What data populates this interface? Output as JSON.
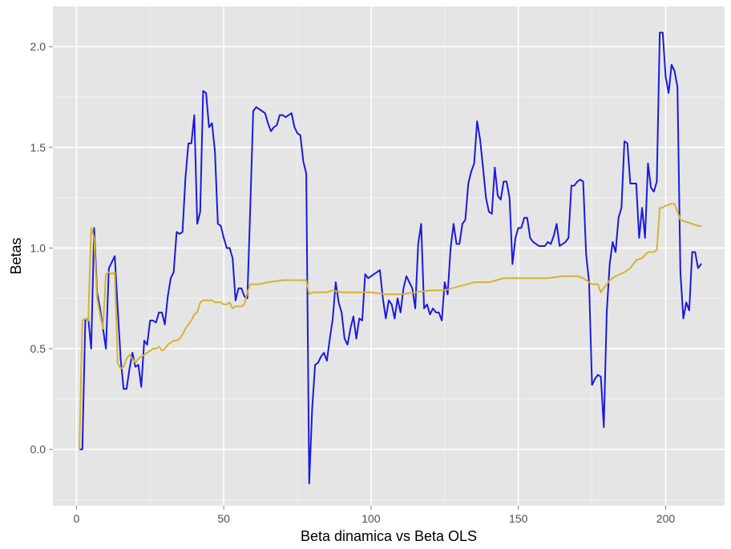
{
  "chart_data": {
    "type": "line",
    "title": "",
    "xlabel": "Beta dinamica vs Beta OLS",
    "ylabel": "Betas",
    "xlim": [
      -8,
      220
    ],
    "ylim": [
      -0.28,
      2.2
    ],
    "x_ticks": [
      0,
      50,
      100,
      150,
      200
    ],
    "y_ticks": [
      0.0,
      0.5,
      1.0,
      1.5,
      2.0
    ],
    "x_tick_labels": [
      "0",
      "50",
      "100",
      "150",
      "200"
    ],
    "y_tick_labels": [
      "0.0",
      "0.5",
      "1.0",
      "1.5",
      "2.0"
    ],
    "grid": true,
    "panel_background": "#e5e5e5",
    "grid_color": "#ffffff",
    "series": [
      {
        "color": "#1a1adf",
        "points": [
          [
            1,
            0.0
          ],
          [
            2,
            0.0
          ],
          [
            3,
            0.64
          ],
          [
            4,
            0.65
          ],
          [
            5,
            0.5
          ],
          [
            6,
            1.1
          ],
          [
            7,
            0.78
          ],
          [
            8,
            0.7
          ],
          [
            9,
            0.6
          ],
          [
            10,
            0.5
          ],
          [
            11,
            0.9
          ],
          [
            12,
            0.93
          ],
          [
            13,
            0.96
          ],
          [
            14,
            0.7
          ],
          [
            15,
            0.45
          ],
          [
            16,
            0.3
          ],
          [
            17,
            0.3
          ],
          [
            18,
            0.4
          ],
          [
            19,
            0.48
          ],
          [
            20,
            0.41
          ],
          [
            21,
            0.42
          ],
          [
            22,
            0.31
          ],
          [
            23,
            0.54
          ],
          [
            24,
            0.52
          ],
          [
            25,
            0.64
          ],
          [
            26,
            0.64
          ],
          [
            27,
            0.63
          ],
          [
            28,
            0.68
          ],
          [
            29,
            0.68
          ],
          [
            30,
            0.62
          ],
          [
            31,
            0.76
          ],
          [
            32,
            0.85
          ],
          [
            33,
            0.88
          ],
          [
            34,
            1.08
          ],
          [
            35,
            1.07
          ],
          [
            36,
            1.08
          ],
          [
            37,
            1.35
          ],
          [
            38,
            1.52
          ],
          [
            39,
            1.52
          ],
          [
            40,
            1.66
          ],
          [
            41,
            1.12
          ],
          [
            42,
            1.18
          ],
          [
            43,
            1.78
          ],
          [
            44,
            1.77
          ],
          [
            45,
            1.6
          ],
          [
            46,
            1.62
          ],
          [
            47,
            1.48
          ],
          [
            48,
            1.12
          ],
          [
            49,
            1.11
          ],
          [
            50,
            1.05
          ],
          [
            51,
            1.0
          ],
          [
            52,
            1.0
          ],
          [
            53,
            0.95
          ],
          [
            54,
            0.74
          ],
          [
            55,
            0.8
          ],
          [
            56,
            0.8
          ],
          [
            57,
            0.76
          ],
          [
            58,
            0.75
          ],
          [
            59,
            1.2
          ],
          [
            60,
            1.68
          ],
          [
            61,
            1.7
          ],
          [
            62,
            1.69
          ],
          [
            63,
            1.68
          ],
          [
            64,
            1.67
          ],
          [
            65,
            1.62
          ],
          [
            66,
            1.58
          ],
          [
            67,
            1.6
          ],
          [
            68,
            1.61
          ],
          [
            69,
            1.66
          ],
          [
            70,
            1.66
          ],
          [
            71,
            1.65
          ],
          [
            72,
            1.66
          ],
          [
            73,
            1.67
          ],
          [
            74,
            1.6
          ],
          [
            75,
            1.57
          ],
          [
            76,
            1.56
          ],
          [
            77,
            1.43
          ],
          [
            78,
            1.37
          ],
          [
            79,
            -0.17
          ],
          [
            80,
            0.2
          ],
          [
            81,
            0.42
          ],
          [
            82,
            0.43
          ],
          [
            83,
            0.46
          ],
          [
            84,
            0.48
          ],
          [
            85,
            0.44
          ],
          [
            86,
            0.55
          ],
          [
            87,
            0.65
          ],
          [
            88,
            0.83
          ],
          [
            89,
            0.73
          ],
          [
            90,
            0.68
          ],
          [
            91,
            0.55
          ],
          [
            92,
            0.52
          ],
          [
            93,
            0.6
          ],
          [
            94,
            0.66
          ],
          [
            95,
            0.55
          ],
          [
            96,
            0.65
          ],
          [
            97,
            0.64
          ],
          [
            98,
            0.87
          ],
          [
            99,
            0.85
          ],
          [
            100,
            0.86
          ],
          [
            101,
            0.87
          ],
          [
            102,
            0.88
          ],
          [
            103,
            0.89
          ],
          [
            104,
            0.75
          ],
          [
            105,
            0.65
          ],
          [
            106,
            0.74
          ],
          [
            107,
            0.72
          ],
          [
            108,
            0.65
          ],
          [
            109,
            0.75
          ],
          [
            110,
            0.68
          ],
          [
            111,
            0.8
          ],
          [
            112,
            0.86
          ],
          [
            113,
            0.83
          ],
          [
            114,
            0.8
          ],
          [
            115,
            0.7
          ],
          [
            116,
            1.02
          ],
          [
            117,
            1.12
          ],
          [
            118,
            0.7
          ],
          [
            119,
            0.72
          ],
          [
            120,
            0.67
          ],
          [
            121,
            0.7
          ],
          [
            122,
            0.68
          ],
          [
            123,
            0.68
          ],
          [
            124,
            0.64
          ],
          [
            125,
            0.83
          ],
          [
            126,
            0.77
          ],
          [
            127,
            1.0
          ],
          [
            128,
            1.12
          ],
          [
            129,
            1.02
          ],
          [
            130,
            1.02
          ],
          [
            131,
            1.12
          ],
          [
            132,
            1.14
          ],
          [
            133,
            1.32
          ],
          [
            134,
            1.38
          ],
          [
            135,
            1.42
          ],
          [
            136,
            1.63
          ],
          [
            137,
            1.54
          ],
          [
            138,
            1.4
          ],
          [
            139,
            1.25
          ],
          [
            140,
            1.18
          ],
          [
            141,
            1.17
          ],
          [
            142,
            1.4
          ],
          [
            143,
            1.26
          ],
          [
            144,
            1.24
          ],
          [
            145,
            1.33
          ],
          [
            146,
            1.33
          ],
          [
            147,
            1.25
          ],
          [
            148,
            0.92
          ],
          [
            149,
            1.05
          ],
          [
            150,
            1.1
          ],
          [
            151,
            1.1
          ],
          [
            152,
            1.15
          ],
          [
            153,
            1.15
          ],
          [
            154,
            1.05
          ],
          [
            155,
            1.03
          ],
          [
            156,
            1.02
          ],
          [
            157,
            1.01
          ],
          [
            158,
            1.01
          ],
          [
            159,
            1.01
          ],
          [
            160,
            1.03
          ],
          [
            161,
            1.02
          ],
          [
            162,
            1.06
          ],
          [
            163,
            1.12
          ],
          [
            164,
            1.01
          ],
          [
            165,
            1.02
          ],
          [
            166,
            1.03
          ],
          [
            167,
            1.05
          ],
          [
            168,
            1.31
          ],
          [
            169,
            1.31
          ],
          [
            170,
            1.33
          ],
          [
            171,
            1.34
          ],
          [
            172,
            1.33
          ],
          [
            173,
            0.97
          ],
          [
            174,
            0.83
          ],
          [
            175,
            0.32
          ],
          [
            176,
            0.35
          ],
          [
            177,
            0.37
          ],
          [
            178,
            0.36
          ],
          [
            179,
            0.11
          ],
          [
            180,
            0.68
          ],
          [
            181,
            0.92
          ],
          [
            182,
            1.03
          ],
          [
            183,
            0.98
          ],
          [
            184,
            1.15
          ],
          [
            185,
            1.2
          ],
          [
            186,
            1.53
          ],
          [
            187,
            1.52
          ],
          [
            188,
            1.32
          ],
          [
            189,
            1.32
          ],
          [
            190,
            1.32
          ],
          [
            191,
            1.05
          ],
          [
            192,
            1.2
          ],
          [
            193,
            1.05
          ],
          [
            194,
            1.42
          ],
          [
            195,
            1.3
          ],
          [
            196,
            1.28
          ],
          [
            197,
            1.33
          ],
          [
            198,
            2.07
          ],
          [
            199,
            2.07
          ],
          [
            200,
            1.85
          ],
          [
            201,
            1.77
          ],
          [
            202,
            1.91
          ],
          [
            203,
            1.88
          ],
          [
            204,
            1.8
          ],
          [
            205,
            0.88
          ],
          [
            206,
            0.65
          ],
          [
            207,
            0.73
          ],
          [
            208,
            0.69
          ],
          [
            209,
            0.98
          ],
          [
            210,
            0.98
          ],
          [
            211,
            0.9
          ],
          [
            212,
            0.92
          ]
        ]
      },
      {
        "color": "#d4b331",
        "points": [
          [
            1,
            0.0
          ],
          [
            2,
            0.64
          ],
          [
            3,
            0.65
          ],
          [
            4,
            0.64
          ],
          [
            5,
            1.1
          ],
          [
            6,
            1.05
          ],
          [
            7,
            0.75
          ],
          [
            8,
            0.67
          ],
          [
            9,
            0.6
          ],
          [
            10,
            0.87
          ],
          [
            11,
            0.88
          ],
          [
            12,
            0.87
          ],
          [
            13,
            0.88
          ],
          [
            14,
            0.43
          ],
          [
            15,
            0.4
          ],
          [
            16,
            0.41
          ],
          [
            17,
            0.45
          ],
          [
            18,
            0.47
          ],
          [
            19,
            0.45
          ],
          [
            20,
            0.43
          ],
          [
            21,
            0.45
          ],
          [
            22,
            0.46
          ],
          [
            23,
            0.47
          ],
          [
            24,
            0.48
          ],
          [
            25,
            0.49
          ],
          [
            26,
            0.5
          ],
          [
            27,
            0.5
          ],
          [
            28,
            0.51
          ],
          [
            29,
            0.49
          ],
          [
            30,
            0.5
          ],
          [
            31,
            0.52
          ],
          [
            32,
            0.53
          ],
          [
            33,
            0.54
          ],
          [
            34,
            0.54
          ],
          [
            35,
            0.55
          ],
          [
            36,
            0.57
          ],
          [
            37,
            0.6
          ],
          [
            38,
            0.62
          ],
          [
            39,
            0.64
          ],
          [
            40,
            0.67
          ],
          [
            41,
            0.68
          ],
          [
            42,
            0.73
          ],
          [
            43,
            0.74
          ],
          [
            44,
            0.74
          ],
          [
            45,
            0.74
          ],
          [
            46,
            0.74
          ],
          [
            47,
            0.73
          ],
          [
            48,
            0.73
          ],
          [
            49,
            0.73
          ],
          [
            50,
            0.72
          ],
          [
            51,
            0.72
          ],
          [
            52,
            0.73
          ],
          [
            53,
            0.7
          ],
          [
            54,
            0.71
          ],
          [
            55,
            0.71
          ],
          [
            56,
            0.71
          ],
          [
            57,
            0.72
          ],
          [
            58,
            0.78
          ],
          [
            59,
            0.82
          ],
          [
            60,
            0.82
          ],
          [
            62,
            0.82
          ],
          [
            65,
            0.83
          ],
          [
            70,
            0.84
          ],
          [
            75,
            0.84
          ],
          [
            78,
            0.84
          ],
          [
            79,
            0.77
          ],
          [
            80,
            0.78
          ],
          [
            85,
            0.78
          ],
          [
            87,
            0.79
          ],
          [
            90,
            0.78
          ],
          [
            95,
            0.78
          ],
          [
            100,
            0.78
          ],
          [
            105,
            0.77
          ],
          [
            110,
            0.77
          ],
          [
            115,
            0.78
          ],
          [
            120,
            0.79
          ],
          [
            125,
            0.79
          ],
          [
            130,
            0.81
          ],
          [
            135,
            0.83
          ],
          [
            140,
            0.83
          ],
          [
            145,
            0.85
          ],
          [
            150,
            0.85
          ],
          [
            155,
            0.85
          ],
          [
            160,
            0.85
          ],
          [
            165,
            0.86
          ],
          [
            170,
            0.86
          ],
          [
            172,
            0.85
          ],
          [
            175,
            0.82
          ],
          [
            177,
            0.82
          ],
          [
            178,
            0.78
          ],
          [
            179,
            0.8
          ],
          [
            181,
            0.84
          ],
          [
            183,
            0.86
          ],
          [
            186,
            0.88
          ],
          [
            188,
            0.9
          ],
          [
            190,
            0.94
          ],
          [
            192,
            0.95
          ],
          [
            194,
            0.98
          ],
          [
            196,
            0.98
          ],
          [
            197,
            0.99
          ],
          [
            198,
            1.2
          ],
          [
            199,
            1.2
          ],
          [
            200,
            1.21
          ],
          [
            202,
            1.22
          ],
          [
            203,
            1.22
          ],
          [
            205,
            1.14
          ],
          [
            207,
            1.13
          ],
          [
            209,
            1.12
          ],
          [
            211,
            1.11
          ],
          [
            212,
            1.11
          ]
        ]
      }
    ]
  }
}
